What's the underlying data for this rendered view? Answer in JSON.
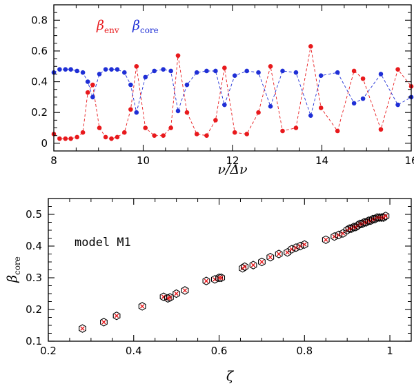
{
  "colors": {
    "env": "#e8191c",
    "core": "#1f2fd6",
    "axis": "#000000",
    "marker": "#000000"
  },
  "chart_data": [
    {
      "type": "line",
      "xlabel": {
        "main": "ν/Δν"
      },
      "ylabel": "",
      "xlim": [
        8,
        16
      ],
      "ylim": [
        -0.05,
        0.9
      ],
      "xticks": [
        8,
        10,
        12,
        14,
        16
      ],
      "yticks": [
        0,
        0.2,
        0.4,
        0.6,
        0.8
      ],
      "legend_position": "top-left",
      "series": [
        {
          "name": "β_env",
          "name_parts": {
            "main": "β",
            "sub": "env"
          },
          "color": "#e8191c",
          "style": "dashed-with-dots",
          "x": [
            8.0,
            8.13,
            8.26,
            8.38,
            8.52,
            8.65,
            8.76,
            8.87,
            9.02,
            9.16,
            9.29,
            9.42,
            9.58,
            9.72,
            9.85,
            10.05,
            10.25,
            10.45,
            10.62,
            10.78,
            10.98,
            11.2,
            11.42,
            11.62,
            11.82,
            12.05,
            12.32,
            12.58,
            12.85,
            13.12,
            13.42,
            13.75,
            13.98,
            14.35,
            14.72,
            14.92,
            15.32,
            15.7,
            16.0
          ],
          "values": [
            0.06,
            0.03,
            0.03,
            0.03,
            0.04,
            0.07,
            0.33,
            0.38,
            0.1,
            0.04,
            0.03,
            0.04,
            0.07,
            0.22,
            0.5,
            0.1,
            0.05,
            0.05,
            0.1,
            0.57,
            0.2,
            0.06,
            0.05,
            0.15,
            0.49,
            0.07,
            0.06,
            0.2,
            0.5,
            0.08,
            0.1,
            0.63,
            0.23,
            0.08,
            0.47,
            0.42,
            0.09,
            0.48,
            0.37
          ]
        },
        {
          "name": "β_core",
          "name_parts": {
            "main": "β",
            "sub": "core"
          },
          "color": "#1f2fd6",
          "style": "dashed-with-dots",
          "x": [
            8.0,
            8.13,
            8.26,
            8.38,
            8.52,
            8.65,
            8.76,
            8.87,
            9.02,
            9.16,
            9.29,
            9.42,
            9.58,
            9.72,
            9.85,
            10.05,
            10.25,
            10.45,
            10.62,
            10.78,
            10.98,
            11.2,
            11.42,
            11.62,
            11.82,
            12.05,
            12.32,
            12.58,
            12.85,
            13.12,
            13.42,
            13.75,
            13.98,
            14.35,
            14.72,
            14.92,
            15.32,
            15.7,
            16.0
          ],
          "values": [
            0.46,
            0.48,
            0.48,
            0.48,
            0.47,
            0.46,
            0.4,
            0.3,
            0.45,
            0.48,
            0.48,
            0.48,
            0.46,
            0.38,
            0.2,
            0.43,
            0.47,
            0.48,
            0.47,
            0.21,
            0.38,
            0.46,
            0.47,
            0.47,
            0.25,
            0.44,
            0.47,
            0.46,
            0.24,
            0.47,
            0.46,
            0.18,
            0.44,
            0.46,
            0.26,
            0.29,
            0.45,
            0.25,
            0.3
          ]
        }
      ]
    },
    {
      "type": "scatter",
      "annotation": "model M1",
      "xlabel": {
        "main": "ζ"
      },
      "ylabel": {
        "main": "β",
        "sub": "core"
      },
      "xlim": [
        0.2,
        1.05
      ],
      "ylim": [
        0.1,
        0.55
      ],
      "xticks": [
        0.2,
        0.4,
        0.6,
        0.8,
        1
      ],
      "yticks": [
        0.1,
        0.2,
        0.3,
        0.4,
        0.5
      ],
      "series": [
        {
          "name": "",
          "marker_outer": "hexagon-open",
          "marker_inner": "x-red",
          "x": [
            0.28,
            0.33,
            0.36,
            0.42,
            0.47,
            0.48,
            0.485,
            0.5,
            0.52,
            0.57,
            0.59,
            0.6,
            0.605,
            0.655,
            0.66,
            0.68,
            0.7,
            0.72,
            0.74,
            0.76,
            0.77,
            0.78,
            0.79,
            0.8,
            0.85,
            0.87,
            0.88,
            0.89,
            0.9,
            0.905,
            0.91,
            0.915,
            0.92,
            0.925,
            0.93,
            0.935,
            0.94,
            0.945,
            0.95,
            0.955,
            0.96,
            0.965,
            0.97,
            0.975,
            0.98,
            0.985,
            0.99
          ],
          "values": [
            0.14,
            0.16,
            0.18,
            0.21,
            0.24,
            0.235,
            0.238,
            0.25,
            0.26,
            0.29,
            0.295,
            0.3,
            0.3,
            0.33,
            0.335,
            0.34,
            0.35,
            0.365,
            0.375,
            0.38,
            0.39,
            0.395,
            0.4,
            0.405,
            0.42,
            0.43,
            0.435,
            0.44,
            0.45,
            0.455,
            0.455,
            0.46,
            0.46,
            0.465,
            0.47,
            0.47,
            0.475,
            0.475,
            0.48,
            0.48,
            0.485,
            0.485,
            0.49,
            0.49,
            0.49,
            0.49,
            0.495
          ]
        }
      ]
    }
  ]
}
